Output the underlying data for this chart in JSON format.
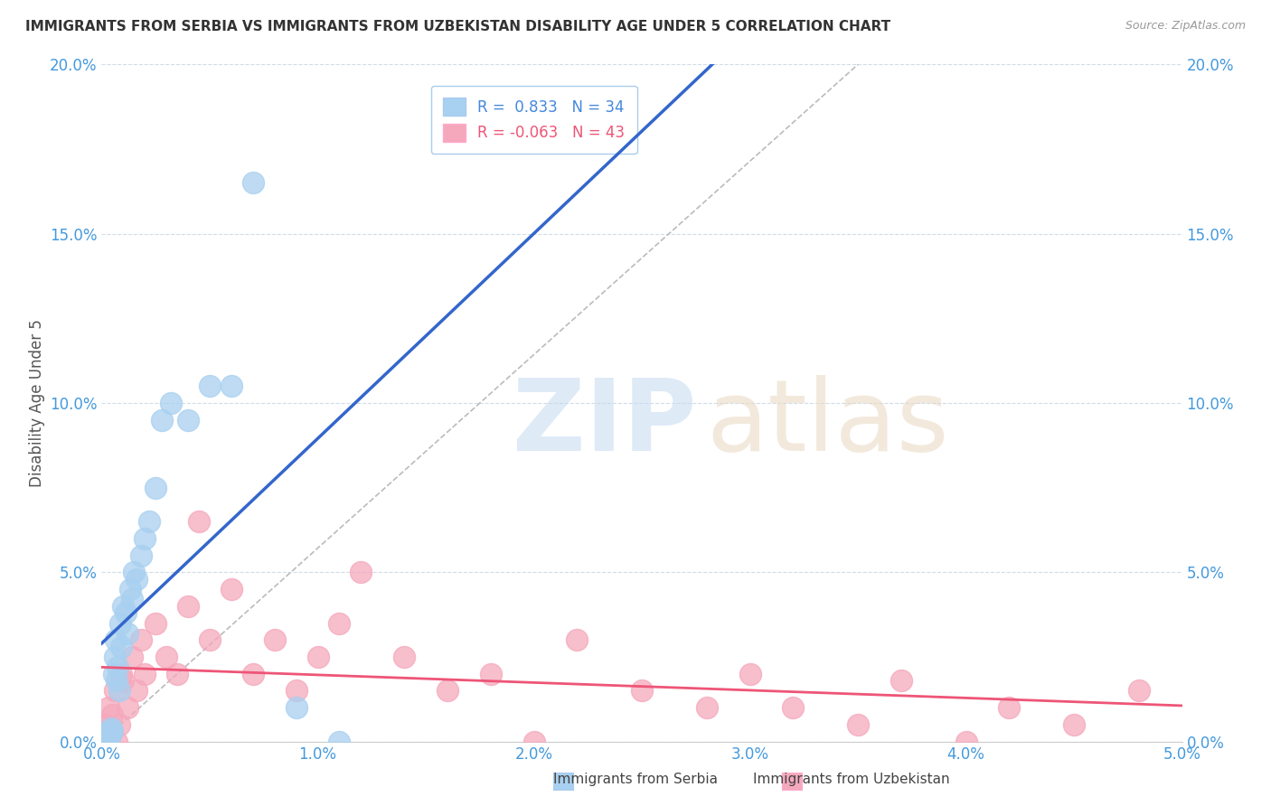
{
  "title": "IMMIGRANTS FROM SERBIA VS IMMIGRANTS FROM UZBEKISTAN DISABILITY AGE UNDER 5 CORRELATION CHART",
  "source": "Source: ZipAtlas.com",
  "ylabel": "Disability Age Under 5",
  "xlim": [
    0.0,
    0.05
  ],
  "ylim": [
    0.0,
    0.2
  ],
  "xticks": [
    0.0,
    0.01,
    0.02,
    0.03,
    0.04,
    0.05
  ],
  "yticks": [
    0.0,
    0.05,
    0.1,
    0.15,
    0.2
  ],
  "xtick_labels": [
    "0.0%",
    "1.0%",
    "2.0%",
    "3.0%",
    "4.0%",
    "5.0%"
  ],
  "ytick_labels": [
    "0.0%",
    "5.0%",
    "10.0%",
    "15.0%",
    "20.0%"
  ],
  "serbia_color": "#A8D0F0",
  "uzbekistan_color": "#F5A8BC",
  "serbia_line_color": "#3366CC",
  "uzbekistan_line_color": "#EE5577",
  "serbia_R": 0.833,
  "serbia_N": 34,
  "uzbekistan_R": -0.063,
  "uzbekistan_N": 43,
  "serbia_x": [
    0.0002,
    0.00025,
    0.0003,
    0.00035,
    0.0004,
    0.00045,
    0.0005,
    0.00055,
    0.0006,
    0.00065,
    0.0007,
    0.00075,
    0.0008,
    0.00085,
    0.0009,
    0.001,
    0.0011,
    0.0012,
    0.0013,
    0.0014,
    0.0015,
    0.0016,
    0.0018,
    0.002,
    0.0022,
    0.0025,
    0.0028,
    0.0032,
    0.004,
    0.005,
    0.006,
    0.007,
    0.009,
    0.011
  ],
  "serbia_y": [
    0.0,
    0.002,
    0.001,
    0.003,
    0.002,
    0.004,
    0.003,
    0.02,
    0.025,
    0.03,
    0.018,
    0.022,
    0.015,
    0.035,
    0.028,
    0.04,
    0.038,
    0.032,
    0.045,
    0.042,
    0.05,
    0.048,
    0.055,
    0.06,
    0.065,
    0.075,
    0.095,
    0.1,
    0.095,
    0.105,
    0.105,
    0.165,
    0.01,
    0.0
  ],
  "uzbekistan_x": [
    0.0001,
    0.0002,
    0.0003,
    0.0004,
    0.0005,
    0.0006,
    0.0007,
    0.0008,
    0.0009,
    0.001,
    0.0012,
    0.0014,
    0.0016,
    0.0018,
    0.002,
    0.0025,
    0.003,
    0.0035,
    0.004,
    0.0045,
    0.005,
    0.006,
    0.007,
    0.008,
    0.009,
    0.01,
    0.011,
    0.012,
    0.014,
    0.016,
    0.018,
    0.02,
    0.022,
    0.025,
    0.028,
    0.03,
    0.032,
    0.035,
    0.037,
    0.04,
    0.042,
    0.045,
    0.048
  ],
  "uzbekistan_y": [
    0.005,
    0.003,
    0.01,
    0.002,
    0.008,
    0.015,
    0.0,
    0.005,
    0.02,
    0.018,
    0.01,
    0.025,
    0.015,
    0.03,
    0.02,
    0.035,
    0.025,
    0.02,
    0.04,
    0.065,
    0.03,
    0.045,
    0.02,
    0.03,
    0.015,
    0.025,
    0.035,
    0.05,
    0.025,
    0.015,
    0.02,
    0.0,
    0.03,
    0.015,
    0.01,
    0.02,
    0.01,
    0.005,
    0.018,
    0.0,
    0.01,
    0.005,
    0.015
  ],
  "ref_line_x": [
    0.0,
    0.035
  ],
  "ref_line_y": [
    0.0,
    0.2
  ]
}
